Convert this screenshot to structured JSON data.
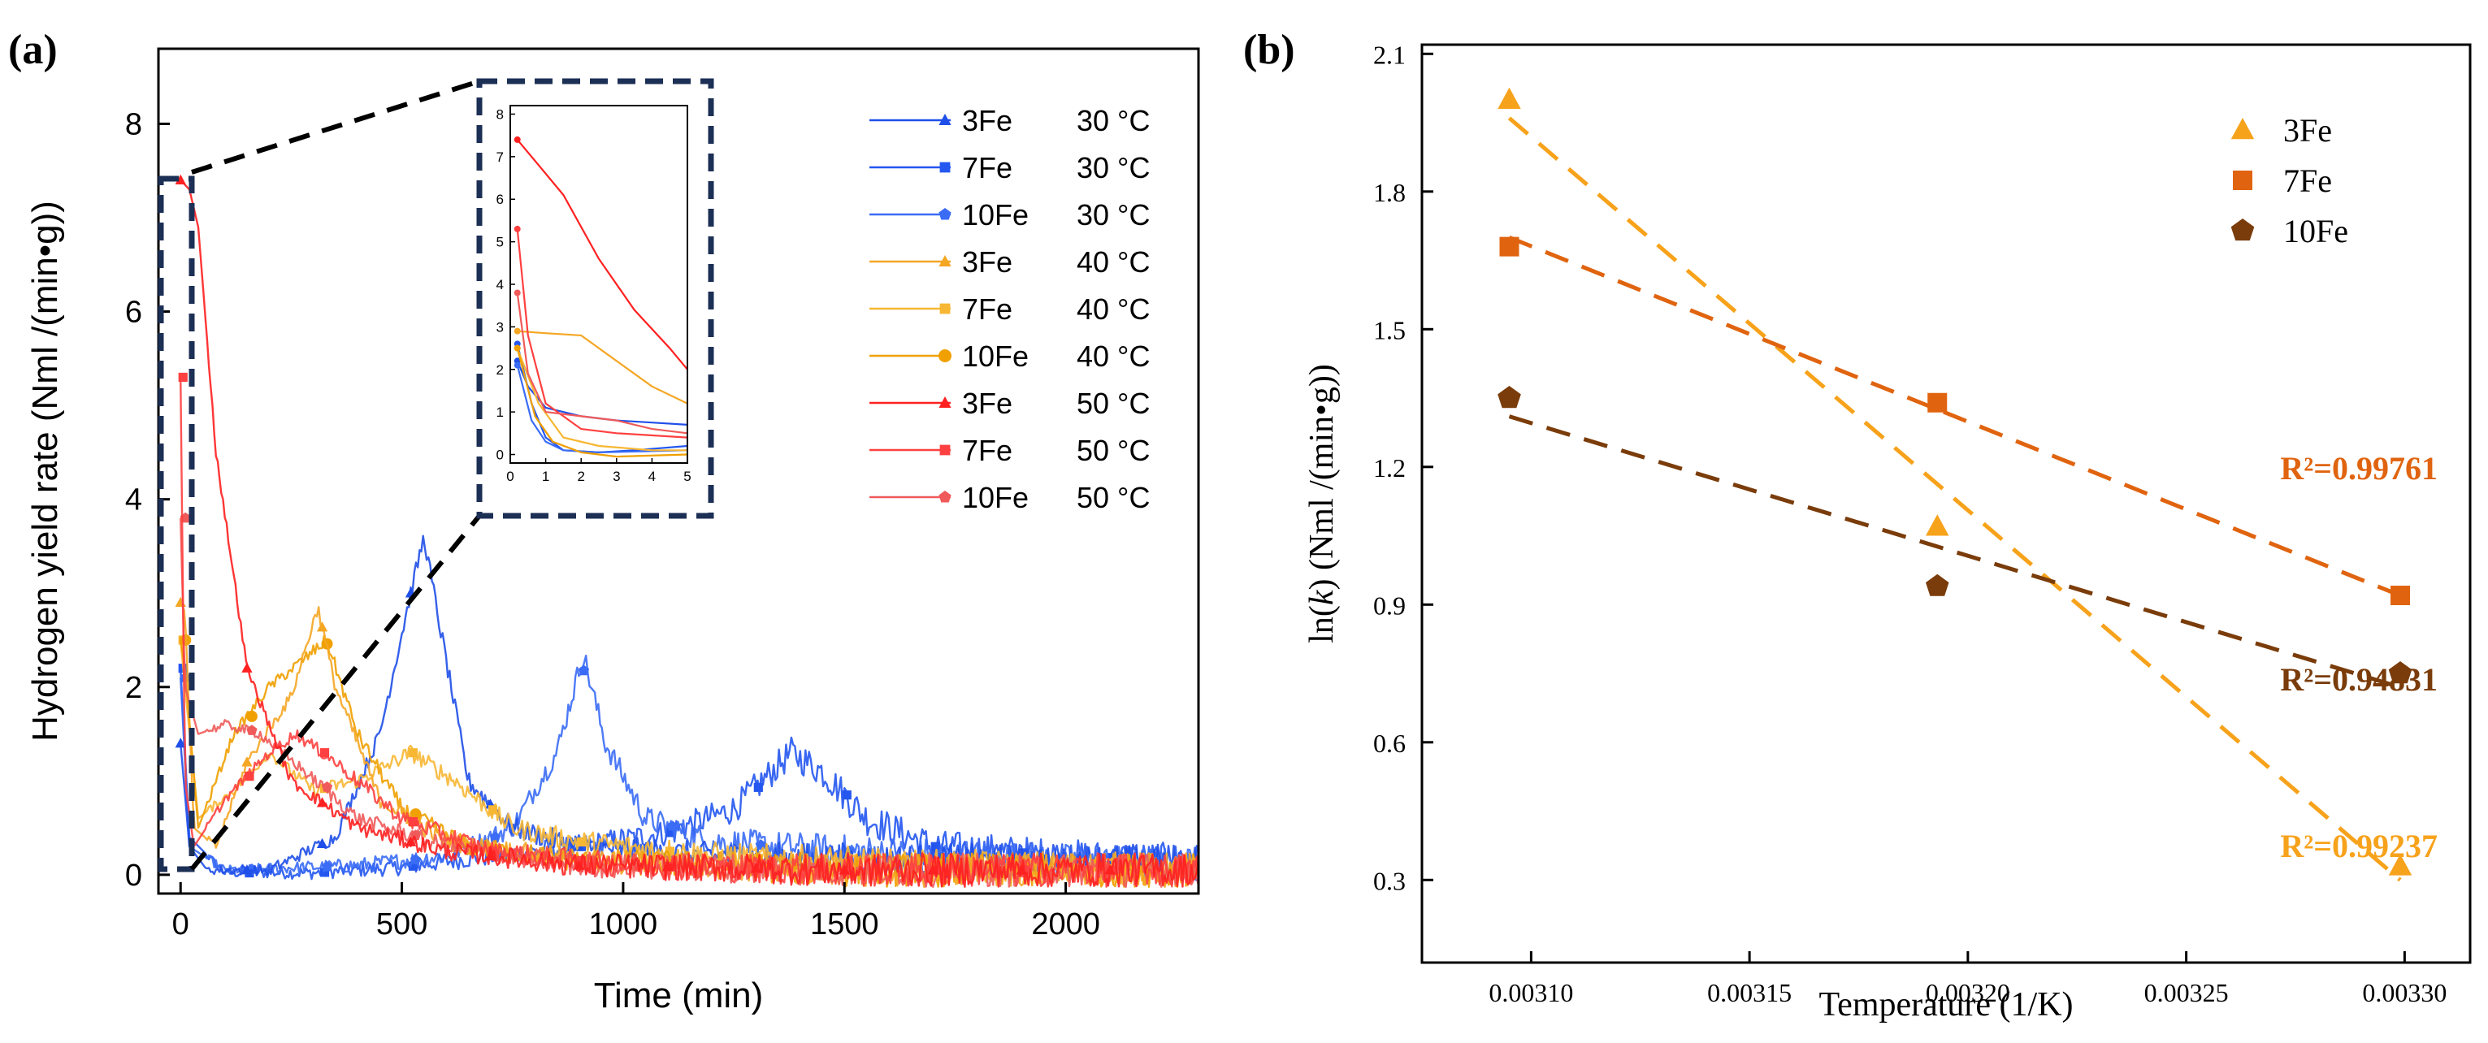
{
  "chart_data": [
    {
      "panel": "(a)",
      "type": "line",
      "xlabel": "Time (min)",
      "ylabel": "Hydrogen yield rate (Nml /(min•g))",
      "xlim": [
        -50,
        2300
      ],
      "ylim": [
        -0.2,
        8.8
      ],
      "xticks": [
        0,
        500,
        1000,
        1500,
        2000
      ],
      "yticks": [
        0,
        2,
        4,
        6,
        8
      ],
      "legend_position": "top-right",
      "series": [
        {
          "sample": "3Fe",
          "temp": "30 °C",
          "color": "#1f4fe8",
          "marker": "triangle",
          "points": [
            [
              0,
              1.4
            ],
            [
              20,
              0.3
            ],
            [
              60,
              0.05
            ],
            [
              200,
              0.05
            ],
            [
              350,
              0.4
            ],
            [
              450,
              1.5
            ],
            [
              520,
              3.0
            ],
            [
              550,
              3.6
            ],
            [
              580,
              2.8
            ],
            [
              650,
              1.0
            ],
            [
              750,
              0.5
            ],
            [
              900,
              0.3
            ],
            [
              1200,
              0.2
            ],
            [
              1600,
              0.15
            ],
            [
              2300,
              0.15
            ]
          ]
        },
        {
          "sample": "7Fe",
          "temp": "30 °C",
          "color": "#2457f0",
          "marker": "square",
          "points": [
            [
              0,
              2.2
            ],
            [
              20,
              0.4
            ],
            [
              100,
              0.02
            ],
            [
              300,
              0.02
            ],
            [
              500,
              0.08
            ],
            [
              700,
              0.2
            ],
            [
              900,
              0.3
            ],
            [
              1100,
              0.45
            ],
            [
              1250,
              0.7
            ],
            [
              1380,
              1.3
            ],
            [
              1450,
              1.1
            ],
            [
              1550,
              0.6
            ],
            [
              1700,
              0.3
            ],
            [
              2000,
              0.2
            ],
            [
              2300,
              0.15
            ]
          ]
        },
        {
          "sample": "10Fe",
          "temp": "30 °C",
          "color": "#3a6cf5",
          "marker": "pentagon",
          "points": [
            [
              0,
              2.1
            ],
            [
              20,
              0.3
            ],
            [
              100,
              0.05
            ],
            [
              400,
              0.1
            ],
            [
              600,
              0.2
            ],
            [
              750,
              0.5
            ],
            [
              850,
              1.3
            ],
            [
              910,
              2.35
            ],
            [
              960,
              1.4
            ],
            [
              1050,
              0.6
            ],
            [
              1200,
              0.35
            ],
            [
              1500,
              0.25
            ],
            [
              2000,
              0.15
            ],
            [
              2300,
              0.1
            ]
          ]
        },
        {
          "sample": "3Fe",
          "temp": "40 °C",
          "color": "#f5a623",
          "marker": "triangle",
          "points": [
            [
              0,
              2.9
            ],
            [
              10,
              2.8
            ],
            [
              30,
              0.5
            ],
            [
              80,
              0.3
            ],
            [
              150,
              1.2
            ],
            [
              250,
              1.9
            ],
            [
              310,
              2.85
            ],
            [
              350,
              2.0
            ],
            [
              450,
              0.8
            ],
            [
              600,
              0.35
            ],
            [
              900,
              0.15
            ],
            [
              1500,
              0.05
            ],
            [
              2300,
              0.05
            ]
          ]
        },
        {
          "sample": "7Fe",
          "temp": "40 °C",
          "color": "#f7b733",
          "marker": "square",
          "points": [
            [
              0,
              2.5
            ],
            [
              10,
              2.0
            ],
            [
              40,
              0.6
            ],
            [
              120,
              0.9
            ],
            [
              200,
              1.3
            ],
            [
              300,
              0.9
            ],
            [
              400,
              1.0
            ],
            [
              520,
              1.3
            ],
            [
              620,
              1.0
            ],
            [
              750,
              0.5
            ],
            [
              900,
              0.35
            ],
            [
              1200,
              0.2
            ],
            [
              1600,
              0.1
            ],
            [
              2300,
              0.05
            ]
          ]
        },
        {
          "sample": "10Fe",
          "temp": "40 °C",
          "color": "#f0a000",
          "marker": "circle",
          "points": [
            [
              0,
              2.5
            ],
            [
              10,
              2.2
            ],
            [
              40,
              0.5
            ],
            [
              120,
              1.5
            ],
            [
              200,
              2.0
            ],
            [
              280,
              2.3
            ],
            [
              330,
              2.5
            ],
            [
              400,
              1.5
            ],
            [
              500,
              0.7
            ],
            [
              650,
              0.3
            ],
            [
              900,
              0.15
            ],
            [
              1500,
              0.05
            ],
            [
              2300,
              0.05
            ]
          ]
        },
        {
          "sample": "3Fe",
          "temp": "50 °C",
          "color": "#ff2020",
          "marker": "triangle",
          "points": [
            [
              0,
              7.4
            ],
            [
              20,
              7.3
            ],
            [
              40,
              6.9
            ],
            [
              80,
              4.5
            ],
            [
              150,
              2.2
            ],
            [
              250,
              1.0
            ],
            [
              400,
              0.5
            ],
            [
              600,
              0.25
            ],
            [
              900,
              0.1
            ],
            [
              1500,
              0.05
            ],
            [
              2300,
              0.05
            ]
          ]
        },
        {
          "sample": "7Fe",
          "temp": "50 °C",
          "color": "#ff4040",
          "marker": "square",
          "points": [
            [
              0,
              5.3
            ],
            [
              10,
              1.0
            ],
            [
              30,
              0.3
            ],
            [
              100,
              0.8
            ],
            [
              200,
              1.3
            ],
            [
              260,
              1.5
            ],
            [
              350,
              1.2
            ],
            [
              500,
              0.6
            ],
            [
              700,
              0.25
            ],
            [
              1000,
              0.1
            ],
            [
              1500,
              0.05
            ],
            [
              2300,
              0.05
            ]
          ]
        },
        {
          "sample": "10Fe",
          "temp": "50 °C",
          "color": "#f05a5a",
          "marker": "pentagon",
          "points": [
            [
              0,
              3.8
            ],
            [
              10,
              2.0
            ],
            [
              40,
              1.5
            ],
            [
              100,
              1.6
            ],
            [
              180,
              1.5
            ],
            [
              280,
              1.1
            ],
            [
              400,
              0.6
            ],
            [
              600,
              0.3
            ],
            [
              900,
              0.1
            ],
            [
              1500,
              0.05
            ],
            [
              2300,
              0.05
            ]
          ]
        }
      ],
      "inset": {
        "xlim": [
          0,
          5
        ],
        "ylim": [
          -0.2,
          8.2
        ],
        "xticks": [
          0,
          1,
          2,
          3,
          4,
          5
        ],
        "yticks": [
          0,
          1,
          2,
          3,
          4,
          5,
          6,
          7,
          8
        ]
      }
    },
    {
      "panel": "(b)",
      "type": "scatter",
      "xlabel": "Temperature (1/K)",
      "ylabel": "ln(k) (Nml /(min•g))",
      "xlim": [
        0.003075,
        0.003315
      ],
      "ylim": [
        0.12,
        2.12
      ],
      "xticks": [
        "0.00310",
        "0.00315",
        "0.00320",
        "0.00325",
        "0.00330"
      ],
      "yticks": [
        "0.3",
        "0.6",
        "0.9",
        "1.2",
        "1.5",
        "1.8",
        "2.1"
      ],
      "legend_position": "top-right",
      "series": [
        {
          "name": "3Fe",
          "color": "#f7a21b",
          "marker": "triangle",
          "x": [
            0.003095,
            0.003193,
            0.003299
          ],
          "y": [
            2.0,
            1.07,
            0.33
          ],
          "fit": [
            [
              0.003095,
              1.96
            ],
            [
              0.003299,
              0.3
            ]
          ],
          "r2": "R²=0.99237"
        },
        {
          "name": "7Fe",
          "color": "#e0640f",
          "marker": "square",
          "x": [
            0.003095,
            0.003193,
            0.003299
          ],
          "y": [
            1.68,
            1.34,
            0.92
          ],
          "fit": [
            [
              0.003095,
              1.7
            ],
            [
              0.003299,
              0.92
            ]
          ],
          "r2": "R²=0.99761"
        },
        {
          "name": "10Fe",
          "color": "#7a3c0a",
          "marker": "pentagon",
          "x": [
            0.003095,
            0.003193,
            0.003299
          ],
          "y": [
            1.35,
            0.94,
            0.75
          ],
          "fit": [
            [
              0.003095,
              1.31
            ],
            [
              0.003299,
              0.72
            ]
          ],
          "r2": "R²=0.94831"
        }
      ]
    }
  ]
}
